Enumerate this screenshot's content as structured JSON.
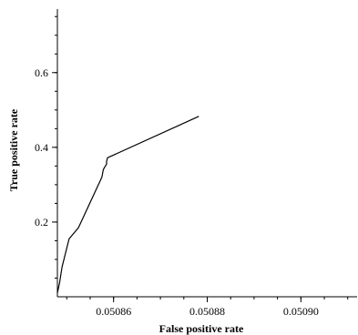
{
  "chart_data": {
    "type": "line",
    "title": "",
    "xlabel": "False positive rate",
    "ylabel": "True positive rate",
    "xlim": [
      0.050848,
      0.050912
    ],
    "ylim": [
      0.0,
      0.77
    ],
    "xticks": [
      0.05086,
      0.05088,
      0.0509
    ],
    "xtick_labels": [
      "0.05086",
      "0.05088",
      "0.05090"
    ],
    "yticks": [
      0.2,
      0.4,
      0.6
    ],
    "ytick_labels": [
      "0.2",
      "0.4",
      "0.6"
    ],
    "x_minor_step": 5e-06,
    "y_minor_step": 0.05,
    "grid": false,
    "series": [
      {
        "x": [
          0.050848,
          0.0508485,
          0.050849,
          0.0508495,
          0.0508505,
          0.0508525,
          0.0508575,
          0.0508578,
          0.050858,
          0.0508585,
          0.0508585,
          0.0508587,
          0.0508782
        ],
        "y": [
          0.01,
          0.04,
          0.08,
          0.105,
          0.155,
          0.185,
          0.32,
          0.34,
          0.345,
          0.355,
          0.362,
          0.372,
          0.483
        ]
      }
    ]
  }
}
